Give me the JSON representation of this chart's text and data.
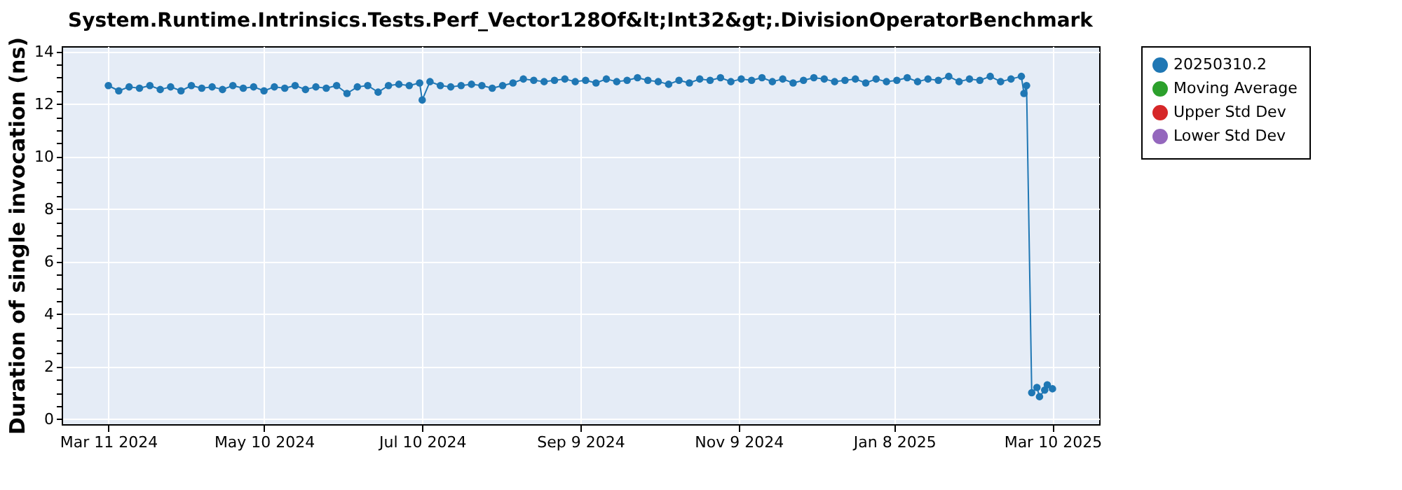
{
  "chart_data": {
    "type": "line",
    "title": "System.Runtime.Intrinsics.Tests.Perf_Vector128Of&lt;Int32&gt;.DivisionOperatorBenchmark",
    "ylabel": "Duration of single invocation (ns)",
    "xlim": [
      "2024-02-22",
      "2025-03-28"
    ],
    "xticks": [
      {
        "value": "2024-03-11",
        "label": "Mar 11 2024"
      },
      {
        "value": "2024-05-10",
        "label": "May 10 2024"
      },
      {
        "value": "2024-07-10",
        "label": "Jul 10 2024"
      },
      {
        "value": "2024-09-09",
        "label": "Sep 9 2024"
      },
      {
        "value": "2024-11-09",
        "label": "Nov 9 2024"
      },
      {
        "value": "2025-01-08",
        "label": "Jan 8 2025"
      },
      {
        "value": "2025-03-10",
        "label": "Mar 10 2025"
      }
    ],
    "ylim": [
      -0.2,
      14.2
    ],
    "yticks": [
      0,
      {
        "value": 0.5,
        "label": null
      },
      {
        "value": 1,
        "label": null
      },
      {
        "value": 1.5,
        "label": null
      },
      2,
      {
        "value": 2.5,
        "label": null
      },
      {
        "value": 3,
        "label": null
      },
      {
        "value": 3.5,
        "label": null
      },
      4,
      {
        "value": 4.5,
        "label": null
      },
      {
        "value": 5,
        "label": null
      },
      {
        "value": 5.5,
        "label": null
      },
      6,
      {
        "value": 6.5,
        "label": null
      },
      {
        "value": 7,
        "label": null
      },
      {
        "value": 7.5,
        "label": null
      },
      8,
      {
        "value": 8.5,
        "label": null
      },
      {
        "value": 9,
        "label": null
      },
      {
        "value": 9.5,
        "label": null
      },
      10,
      {
        "value": 10.5,
        "label": null
      },
      {
        "value": 11,
        "label": null
      },
      {
        "value": 11.5,
        "label": null
      },
      12,
      {
        "value": 12.5,
        "label": null
      },
      {
        "value": 13,
        "label": null
      },
      {
        "value": 13.5,
        "label": null
      },
      14
    ],
    "grid": true,
    "legend": "right",
    "marker": "circle",
    "line_style": "solid",
    "series": [
      {
        "name": "20250310.2",
        "color": "#1f77b4",
        "x": [
          "2024-03-11",
          "2024-03-15",
          "2024-03-19",
          "2024-03-23",
          "2024-03-27",
          "2024-03-31",
          "2024-04-04",
          "2024-04-08",
          "2024-04-12",
          "2024-04-16",
          "2024-04-20",
          "2024-04-24",
          "2024-04-28",
          "2024-05-02",
          "2024-05-06",
          "2024-05-10",
          "2024-05-14",
          "2024-05-18",
          "2024-05-22",
          "2024-05-26",
          "2024-05-30",
          "2024-06-03",
          "2024-06-07",
          "2024-06-11",
          "2024-06-15",
          "2024-06-19",
          "2024-06-23",
          "2024-06-27",
          "2024-07-01",
          "2024-07-05",
          "2024-07-09",
          "2024-07-10",
          "2024-07-13",
          "2024-07-17",
          "2024-07-21",
          "2024-07-25",
          "2024-07-29",
          "2024-08-02",
          "2024-08-06",
          "2024-08-10",
          "2024-08-14",
          "2024-08-18",
          "2024-08-22",
          "2024-08-26",
          "2024-08-30",
          "2024-09-03",
          "2024-09-07",
          "2024-09-11",
          "2024-09-15",
          "2024-09-19",
          "2024-09-23",
          "2024-09-27",
          "2024-10-01",
          "2024-10-05",
          "2024-10-09",
          "2024-10-13",
          "2024-10-17",
          "2024-10-21",
          "2024-10-25",
          "2024-10-29",
          "2024-11-02",
          "2024-11-06",
          "2024-11-10",
          "2024-11-14",
          "2024-11-18",
          "2024-11-22",
          "2024-11-26",
          "2024-11-30",
          "2024-12-04",
          "2024-12-08",
          "2024-12-12",
          "2024-12-16",
          "2024-12-20",
          "2024-12-24",
          "2024-12-28",
          "2025-01-01",
          "2025-01-05",
          "2025-01-09",
          "2025-01-13",
          "2025-01-17",
          "2025-01-21",
          "2025-01-25",
          "2025-01-29",
          "2025-02-02",
          "2025-02-06",
          "2025-02-10",
          "2025-02-14",
          "2025-02-18",
          "2025-02-22",
          "2025-02-26",
          "2025-02-27",
          "2025-02-28",
          "2025-03-02",
          "2025-03-04",
          "2025-03-05",
          "2025-03-07",
          "2025-03-08",
          "2025-03-10"
        ],
        "values": [
          12.7,
          12.5,
          12.65,
          12.6,
          12.7,
          12.55,
          12.65,
          12.5,
          12.7,
          12.6,
          12.65,
          12.55,
          12.7,
          12.6,
          12.65,
          12.5,
          12.65,
          12.6,
          12.7,
          12.55,
          12.65,
          12.6,
          12.7,
          12.4,
          12.65,
          12.7,
          12.45,
          12.7,
          12.75,
          12.7,
          12.8,
          12.15,
          12.85,
          12.7,
          12.65,
          12.7,
          12.75,
          12.7,
          12.6,
          12.7,
          12.8,
          12.95,
          12.9,
          12.85,
          12.9,
          12.95,
          12.85,
          12.9,
          12.8,
          12.95,
          12.85,
          12.9,
          13.0,
          12.9,
          12.85,
          12.75,
          12.9,
          12.8,
          12.95,
          12.9,
          13.0,
          12.85,
          12.95,
          12.9,
          13.0,
          12.85,
          12.95,
          12.8,
          12.9,
          13.0,
          12.95,
          12.85,
          12.9,
          12.95,
          12.8,
          12.95,
          12.85,
          12.9,
          13.0,
          12.85,
          12.95,
          12.9,
          13.05,
          12.85,
          12.95,
          12.9,
          13.05,
          12.85,
          12.95,
          13.05,
          12.4,
          12.7,
          1.0,
          1.2,
          0.85,
          1.1,
          1.3,
          1.15
        ]
      },
      {
        "name": "Moving Average",
        "color": "#2ca02c"
      },
      {
        "name": "Upper Std Dev",
        "color": "#d62728"
      },
      {
        "name": "Lower Std Dev",
        "color": "#9467bd"
      }
    ]
  }
}
